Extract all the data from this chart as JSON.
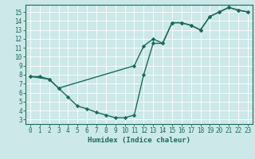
{
  "line1_x": [
    0,
    1,
    2,
    3,
    11,
    12,
    13,
    14,
    15,
    16,
    17,
    18,
    19,
    20,
    21,
    22,
    23
  ],
  "line1_y": [
    7.8,
    7.8,
    7.5,
    6.5,
    9.0,
    11.2,
    12.0,
    11.5,
    13.8,
    13.8,
    13.5,
    13.0,
    14.5,
    15.0,
    15.5,
    15.2,
    15.0
  ],
  "line2_x": [
    0,
    2,
    3,
    4,
    5,
    6,
    7,
    8,
    9,
    10,
    11,
    12,
    13,
    14,
    15,
    16,
    17,
    18,
    19,
    20,
    21,
    22,
    23
  ],
  "line2_y": [
    7.8,
    7.5,
    6.5,
    5.5,
    4.5,
    4.2,
    3.8,
    3.5,
    3.2,
    3.2,
    3.5,
    8.0,
    11.5,
    11.5,
    13.8,
    13.8,
    13.5,
    13.0,
    14.5,
    15.0,
    15.5,
    15.2,
    15.0
  ],
  "line_color": "#1a6b5a",
  "bg_color": "#cce8e8",
  "grid_color": "#ffffff",
  "xlabel": "Humidex (Indice chaleur)",
  "xlim": [
    -0.5,
    23.5
  ],
  "ylim": [
    2.5,
    15.8
  ],
  "xticks": [
    0,
    1,
    2,
    3,
    4,
    5,
    6,
    7,
    8,
    9,
    10,
    11,
    12,
    13,
    14,
    15,
    16,
    17,
    18,
    19,
    20,
    21,
    22,
    23
  ],
  "yticks": [
    3,
    4,
    5,
    6,
    7,
    8,
    9,
    10,
    11,
    12,
    13,
    14,
    15
  ],
  "marker": "D",
  "markersize": 2.2,
  "linewidth": 1.0,
  "xlabel_fontsize": 6.5,
  "tick_fontsize": 5.5
}
